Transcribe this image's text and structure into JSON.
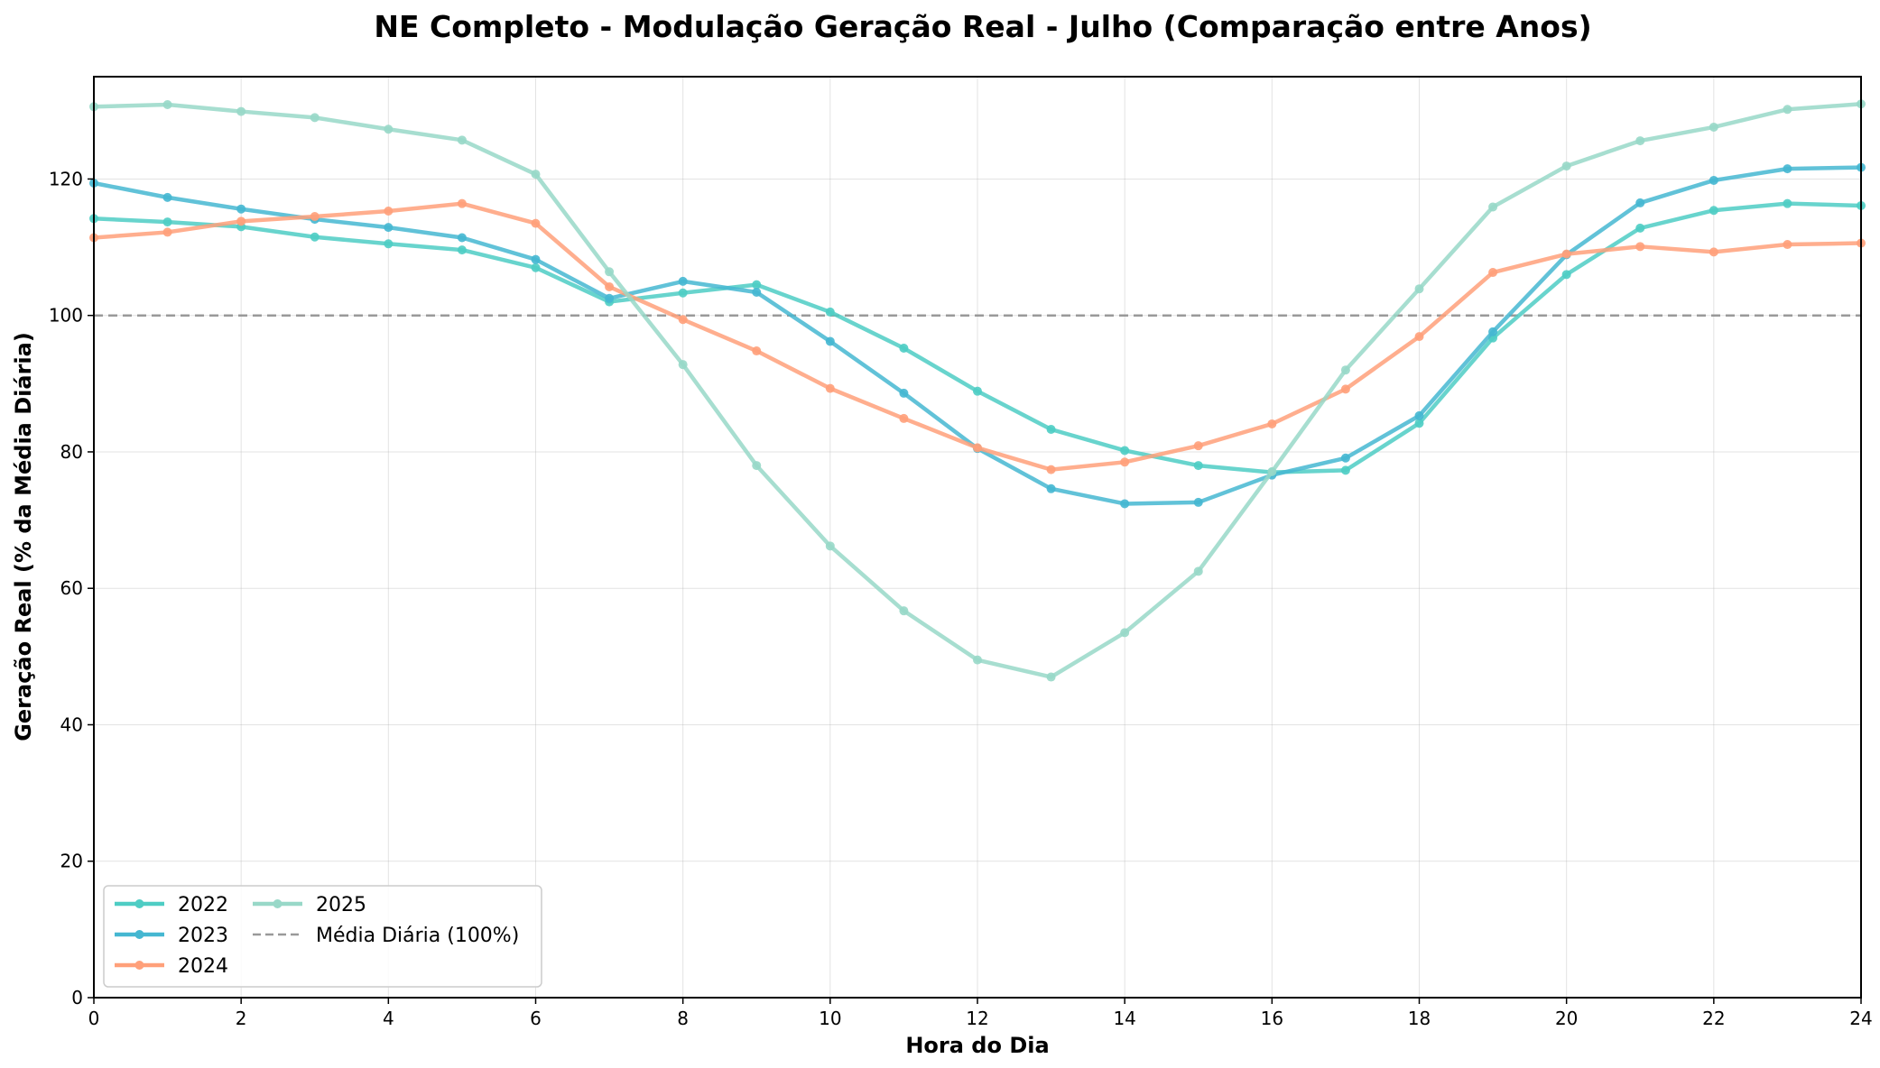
{
  "chart_data": {
    "type": "line",
    "title": "NE Completo - Modulação Geração Real - Julho (Comparação entre Anos)",
    "xlabel": "Hora do Dia",
    "ylabel": "Geração Real (% da Média Diária)",
    "xlim": [
      0,
      24
    ],
    "ylim": [
      0,
      135
    ],
    "xticks": [
      0,
      2,
      4,
      6,
      8,
      10,
      12,
      14,
      16,
      18,
      20,
      22,
      24
    ],
    "yticks": [
      0,
      20,
      40,
      60,
      80,
      100,
      120
    ],
    "grid": true,
    "legend_position": "lower-left",
    "x": [
      0,
      1,
      2,
      3,
      4,
      5,
      6,
      7,
      8,
      9,
      10,
      11,
      12,
      13,
      14,
      15,
      16,
      17,
      18,
      19,
      20,
      21,
      22,
      23,
      24
    ],
    "series": [
      {
        "name": "2022",
        "color": "#4ecdc4",
        "values": [
          114.2,
          113.7,
          113.0,
          111.5,
          110.5,
          109.6,
          107.0,
          102.0,
          103.3,
          104.5,
          100.5,
          95.2,
          88.9,
          83.3,
          80.2,
          78.0,
          77.0,
          77.3,
          84.2,
          96.7,
          106.0,
          112.8,
          115.4,
          116.4,
          116.1
        ]
      },
      {
        "name": "2023",
        "color": "#45b7d1",
        "values": [
          119.4,
          117.3,
          115.6,
          114.1,
          112.9,
          111.4,
          108.2,
          102.5,
          105.0,
          103.4,
          96.2,
          88.6,
          80.5,
          74.6,
          72.4,
          72.6,
          76.6,
          79.1,
          85.3,
          97.6,
          108.9,
          116.5,
          119.8,
          121.5,
          121.7
        ]
      },
      {
        "name": "2024",
        "color": "#ffa07a",
        "values": [
          111.4,
          112.2,
          113.8,
          114.5,
          115.3,
          116.4,
          113.5,
          104.2,
          99.4,
          94.8,
          89.3,
          84.9,
          80.6,
          77.4,
          78.5,
          80.9,
          84.1,
          89.2,
          96.9,
          106.3,
          109.0,
          110.1,
          109.3,
          110.4,
          110.6
        ]
      },
      {
        "name": "2025",
        "color": "#98d8c8",
        "values": [
          130.6,
          130.9,
          129.9,
          129.0,
          127.3,
          125.7,
          120.7,
          106.4,
          92.8,
          78.0,
          66.2,
          56.7,
          49.5,
          47.0,
          53.5,
          62.5,
          77.1,
          92.0,
          103.9,
          115.9,
          121.9,
          125.6,
          127.6,
          130.2,
          131.0
        ]
      }
    ],
    "reference_line": {
      "name": "Média Diária (100%)",
      "value": 100,
      "color": "#999999",
      "style": "dashed"
    }
  }
}
